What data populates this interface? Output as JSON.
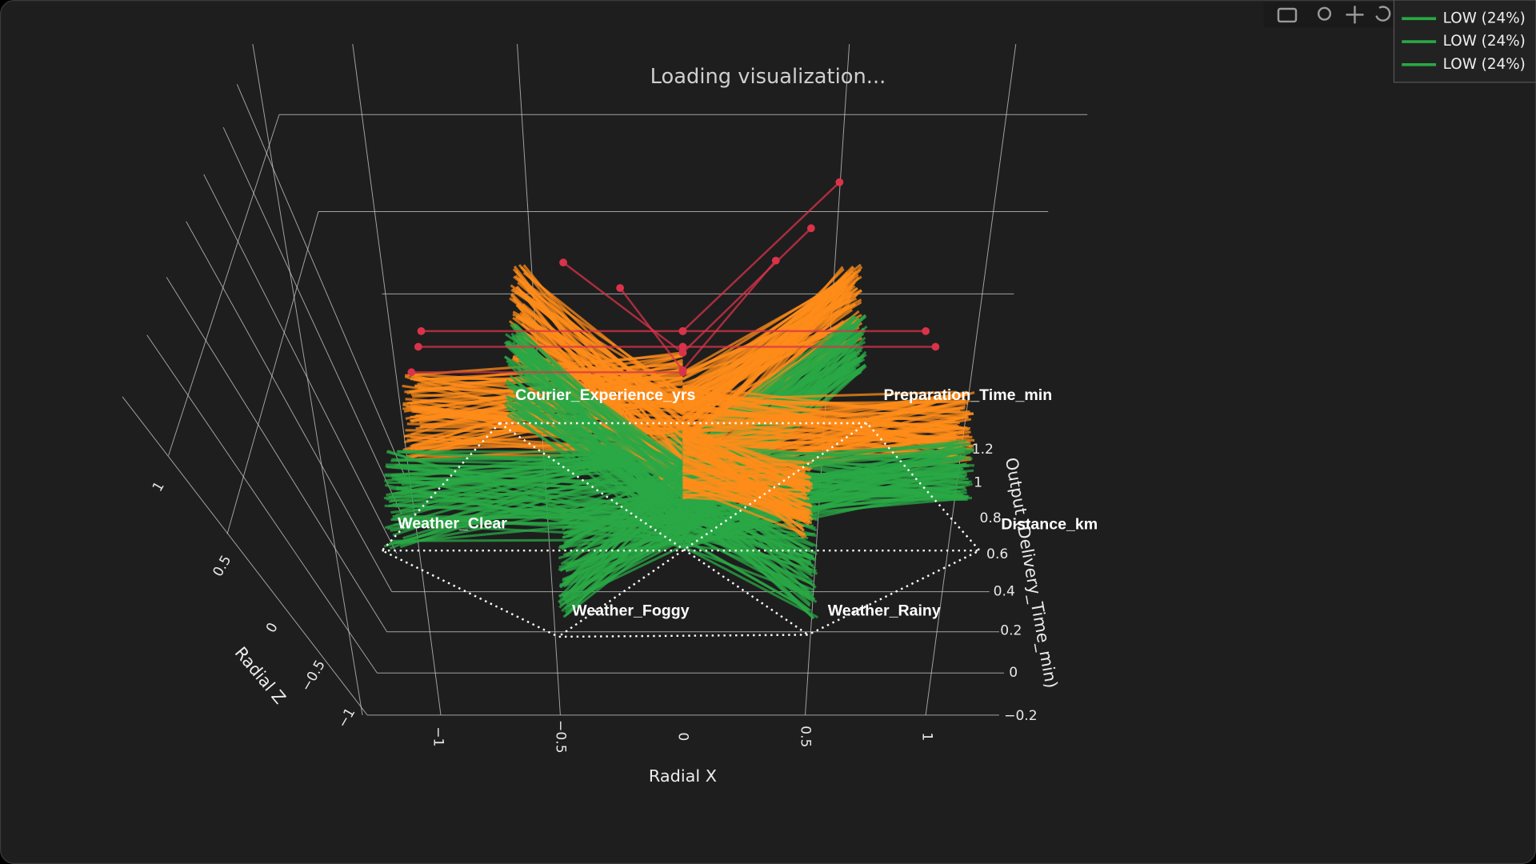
{
  "status": "Loading visualization...",
  "legend": [
    "LOW (24%)",
    "LOW (24%)",
    "LOW (24%)"
  ],
  "axes": {
    "x": {
      "title": "Radial X",
      "ticks": [
        "−1",
        "−0.5",
        "0",
        "0.5",
        "1"
      ]
    },
    "z": {
      "title": "Radial Z",
      "ticks": [
        "1",
        "0.5",
        "0",
        "−0.5",
        "−1"
      ]
    },
    "output": {
      "title": "Output (Delivery_Time_min)",
      "ticks": [
        "1.2",
        "1",
        "0.8",
        "0.6",
        "0.4",
        "0.2",
        "0",
        "−0.2"
      ]
    }
  },
  "features": [
    "Courier_Experience_yrs",
    "Preparation_Time_min",
    "Weather_Clear",
    "Distance_km",
    "Weather_Foggy",
    "Weather_Rainy"
  ]
}
